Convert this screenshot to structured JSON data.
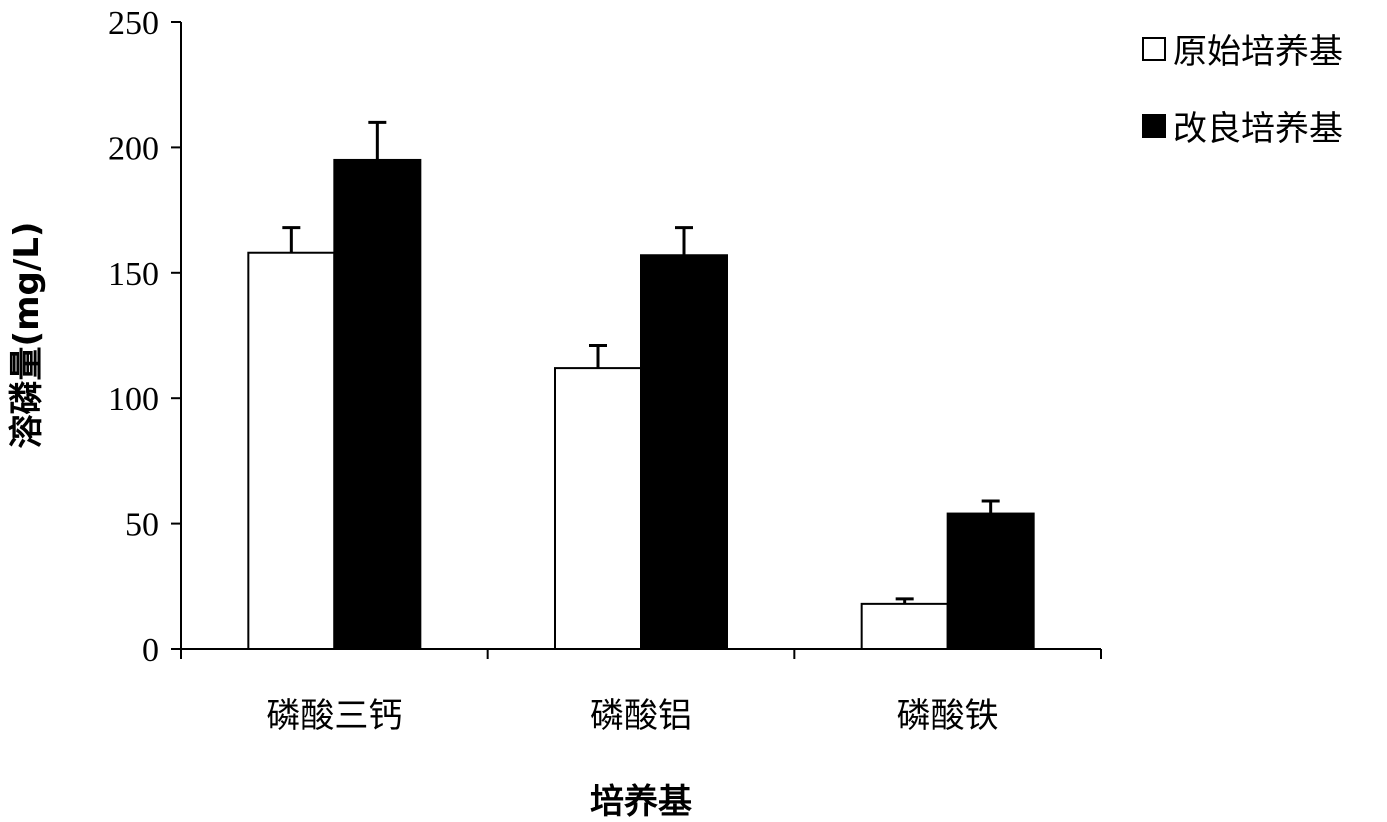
{
  "chart_data": {
    "type": "bar",
    "title": "",
    "xlabel": "培养基",
    "ylabel": "溶磷量(mg/L)",
    "categories": [
      "磷酸三钙",
      "磷酸铝",
      "磷酸铁"
    ],
    "ylim": [
      0,
      250
    ],
    "yticks": [
      0,
      50,
      100,
      150,
      200,
      250
    ],
    "grid": false,
    "legend_position": "top-right",
    "series": [
      {
        "name": "原始培养基",
        "values": [
          158,
          112,
          18
        ],
        "errors": [
          10,
          9,
          2
        ],
        "fill": "#ffffff",
        "stroke": "#000000"
      },
      {
        "name": "改良培养基",
        "values": [
          195,
          157,
          54
        ],
        "errors": [
          15,
          11,
          5
        ],
        "fill": "#000000",
        "stroke": "#000000"
      }
    ]
  }
}
